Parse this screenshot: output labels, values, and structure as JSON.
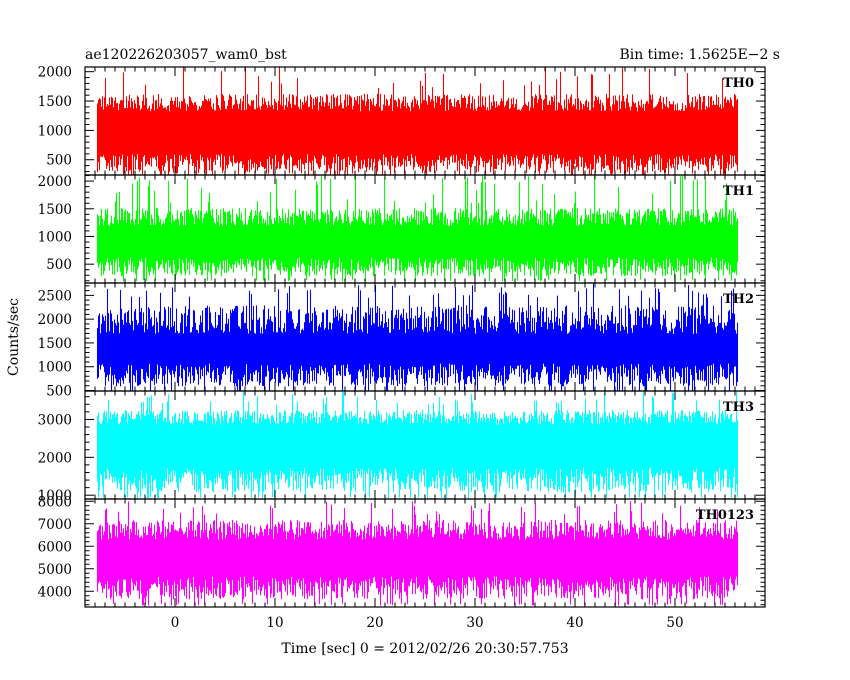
{
  "header": {
    "title": "ae120226203057_wam0_bst",
    "bin_time": "Bin time: 1.5625E−2 s"
  },
  "chart_data": {
    "type": "line",
    "title": "ae120226203057_wam0_bst",
    "subtitle": "Bin time: 1.5625E−2 s",
    "xlabel": "Time [sec] 0 = 2012/02/26 20:30:57.753",
    "ylabel": "Counts/sec",
    "xlim": [
      -9,
      59
    ],
    "x_ticks": [
      0,
      10,
      20,
      30,
      40,
      50
    ],
    "x_range": [
      -7.8,
      56.2
    ],
    "grid": false,
    "panels": [
      {
        "name": "TH0",
        "color": "#ff0000",
        "ylim": [
          240,
          2080
        ],
        "y_ticks": [
          500,
          1000,
          1500,
          2000
        ],
        "typical_range": [
          480,
          1430
        ],
        "envelope": [
          200,
          1700
        ],
        "spike_max": 2100
      },
      {
        "name": "TH1",
        "color": "#00ff00",
        "ylim": [
          160,
          2110
        ],
        "y_ticks": [
          500,
          1000,
          1500,
          2000
        ],
        "typical_range": [
          500,
          1300
        ],
        "envelope": [
          220,
          1600
        ],
        "spike_max": 2150
      },
      {
        "name": "TH2",
        "color": "#0000ff",
        "ylim": [
          490,
          2760
        ],
        "y_ticks": [
          500,
          1000,
          1500,
          2000,
          2500
        ],
        "typical_range": [
          900,
          1900
        ],
        "envelope": [
          500,
          2450
        ],
        "spike_max": 2760
      },
      {
        "name": "TH3",
        "color": "#00ffff",
        "ylim": [
          900,
          3750
        ],
        "y_ticks": [
          1000,
          2000,
          3000
        ],
        "typical_range": [
          1500,
          3000
        ],
        "envelope": [
          950,
          3350
        ],
        "spike_max": 3750
      },
      {
        "name": "TH0123",
        "color": "#ff00ff",
        "ylim": [
          3300,
          8100
        ],
        "y_ticks": [
          4000,
          5000,
          6000,
          7000,
          8000
        ],
        "typical_range": [
          4300,
          6600
        ],
        "envelope": [
          3450,
          7400
        ],
        "spike_max": 8000
      }
    ]
  }
}
